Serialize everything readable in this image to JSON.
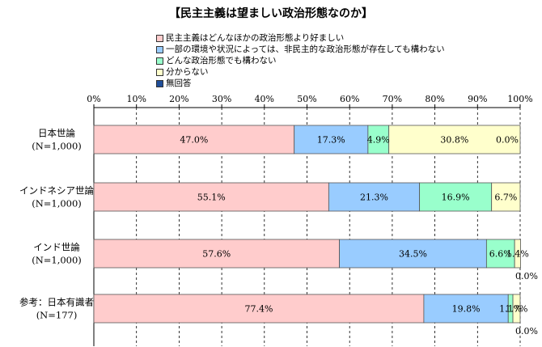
{
  "chart_data": {
    "type": "bar",
    "orientation": "horizontal",
    "stacked": true,
    "title": "【民主主義は望ましい政治形態なのか】",
    "xlim": [
      0,
      100
    ],
    "x_ticks": [
      "0%",
      "10%",
      "20%",
      "30%",
      "40%",
      "50%",
      "60%",
      "70%",
      "80%",
      "90%",
      "100%"
    ],
    "grid": "vertical dashed",
    "legend_position": "top",
    "categories": [
      {
        "label": "日本世論",
        "sublabel": "(N=1,000)"
      },
      {
        "label": "インドネシア世論",
        "sublabel": "(N=1,000)"
      },
      {
        "label": "インド世論",
        "sublabel": "(N=1,000)"
      },
      {
        "label": "参考：日本有識者",
        "sublabel": "(N=177)"
      }
    ],
    "series": [
      {
        "name": "民主主義はどんなほかの政治形態より好ましい",
        "color": "#FFCCCC",
        "values": [
          47.0,
          55.1,
          57.6,
          77.4
        ]
      },
      {
        "name": "一部の環境や状況によっては、非民主的な政治形態が存在しても構わない",
        "color": "#99CCFF",
        "values": [
          17.3,
          21.3,
          34.5,
          19.8
        ]
      },
      {
        "name": "どんな政治形態でも構わない",
        "color": "#99FFCC",
        "values": [
          4.9,
          16.9,
          6.6,
          1.1
        ]
      },
      {
        "name": "分からない",
        "color": "#FFFFCC",
        "values": [
          30.8,
          6.7,
          1.4,
          1.7
        ]
      },
      {
        "name": "無回答",
        "color": "#1F4E99",
        "values": [
          0.0,
          0.0,
          0.0,
          0.0
        ]
      }
    ],
    "data_labels": [
      [
        "47.0%",
        "17.3%",
        "4.9%",
        "30.8%",
        "0.0%"
      ],
      [
        "55.1%",
        "21.3%",
        "16.9%",
        "6.7%",
        ""
      ],
      [
        "57.6%",
        "34.5%",
        "6.6%",
        "1.4%",
        "0.0%"
      ],
      [
        "77.4%",
        "19.8%",
        "1.1%",
        "1.7%",
        "0.0%"
      ]
    ]
  }
}
